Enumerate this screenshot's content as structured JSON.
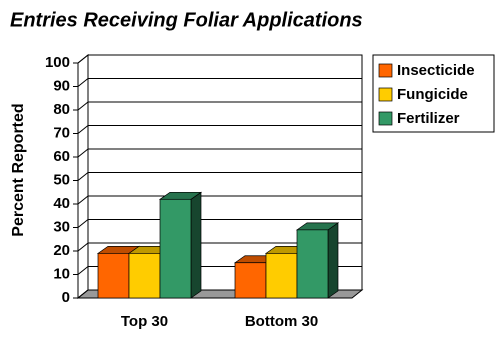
{
  "chart_data": {
    "type": "bar3d",
    "title": "Entries Receiving Foliar Applications",
    "y_label": "Percent Reported",
    "categories": [
      "Top 30",
      "Bottom 30"
    ],
    "series": [
      {
        "name": "Insecticide",
        "color": "#ff6600",
        "values": [
          19,
          15
        ]
      },
      {
        "name": "Fungicide",
        "color": "#ffcc00",
        "values": [
          19,
          19
        ]
      },
      {
        "name": "Fertilizer",
        "color": "#339966",
        "values": [
          42,
          29
        ]
      }
    ],
    "ylim": [
      0,
      100
    ],
    "yticks": [
      0,
      10,
      20,
      30,
      40,
      50,
      60,
      70,
      80,
      90,
      100
    ],
    "grid": true,
    "legend": "right"
  }
}
